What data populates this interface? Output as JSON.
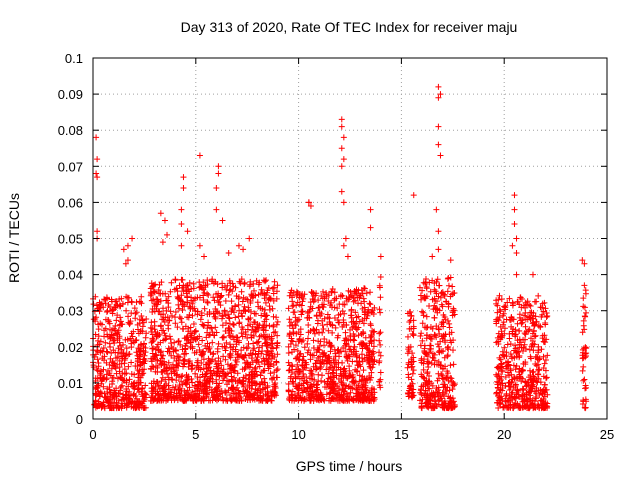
{
  "chart_data": {
    "type": "scatter",
    "title": "Day 313 of 2020, Rate Of TEC Index for receiver maju",
    "xlabel": "GPS time / hours",
    "ylabel": "ROTI / TECUs",
    "xlim": [
      0,
      25
    ],
    "ylim": [
      0,
      0.1
    ],
    "xticks": [
      "0",
      "5",
      "10",
      "15",
      "20",
      "25"
    ],
    "yticks": [
      "0",
      "0.01",
      "0.02",
      "0.03",
      "0.04",
      "0.05",
      "0.06",
      "0.07",
      "0.08",
      "0.09",
      "0.1"
    ],
    "grid": true,
    "marker": "+",
    "color": "#ff0000",
    "data_segments": [
      {
        "x_range": [
          0.0,
          2.6
        ],
        "y_min": 0.003,
        "y_typical": 0.028
      },
      {
        "x_range": [
          2.8,
          9.0
        ],
        "y_min": 0.005,
        "y_typical": 0.032
      },
      {
        "x_range": [
          9.5,
          13.7
        ],
        "y_min": 0.005,
        "y_typical": 0.03
      },
      {
        "x_range": [
          13.9,
          14.0
        ],
        "y_min": 0.008,
        "y_typical": 0.035
      },
      {
        "x_range": [
          15.3,
          15.6
        ],
        "y_min": 0.006,
        "y_typical": 0.025
      },
      {
        "x_range": [
          15.9,
          17.6
        ],
        "y_min": 0.003,
        "y_typical": 0.032
      },
      {
        "x_range": [
          19.6,
          22.1
        ],
        "y_min": 0.003,
        "y_typical": 0.028
      },
      {
        "x_range": [
          23.8,
          24.0
        ],
        "y_min": 0.003,
        "y_typical": 0.03
      }
    ],
    "points": [
      [
        0.15,
        0.078
      ],
      [
        0.2,
        0.072
      ],
      [
        0.15,
        0.068
      ],
      [
        0.2,
        0.067
      ],
      [
        0.2,
        0.052
      ],
      [
        0.2,
        0.05
      ],
      [
        1.5,
        0.047
      ],
      [
        1.7,
        0.048
      ],
      [
        1.9,
        0.05
      ],
      [
        1.7,
        0.044
      ],
      [
        1.6,
        0.043
      ],
      [
        3.3,
        0.057
      ],
      [
        3.5,
        0.055
      ],
      [
        3.6,
        0.051
      ],
      [
        3.4,
        0.049
      ],
      [
        4.4,
        0.067
      ],
      [
        4.4,
        0.064
      ],
      [
        4.3,
        0.058
      ],
      [
        4.3,
        0.054
      ],
      [
        4.6,
        0.052
      ],
      [
        4.3,
        0.048
      ],
      [
        5.2,
        0.073
      ],
      [
        5.2,
        0.048
      ],
      [
        5.4,
        0.045
      ],
      [
        6.1,
        0.07
      ],
      [
        6.1,
        0.068
      ],
      [
        6.0,
        0.064
      ],
      [
        6.0,
        0.058
      ],
      [
        6.3,
        0.055
      ],
      [
        7.1,
        0.048
      ],
      [
        7.3,
        0.047
      ],
      [
        7.6,
        0.05
      ],
      [
        6.6,
        0.046
      ],
      [
        10.5,
        0.06
      ],
      [
        10.6,
        0.059
      ],
      [
        10.5,
        0.06
      ],
      [
        12.1,
        0.083
      ],
      [
        12.1,
        0.081
      ],
      [
        12.2,
        0.078
      ],
      [
        12.1,
        0.075
      ],
      [
        12.2,
        0.072
      ],
      [
        12.1,
        0.07
      ],
      [
        12.1,
        0.063
      ],
      [
        12.2,
        0.06
      ],
      [
        12.3,
        0.05
      ],
      [
        12.2,
        0.048
      ],
      [
        12.4,
        0.045
      ],
      [
        13.5,
        0.058
      ],
      [
        13.5,
        0.053
      ],
      [
        14.0,
        0.045
      ],
      [
        15.6,
        0.062
      ],
      [
        16.8,
        0.092
      ],
      [
        16.9,
        0.09
      ],
      [
        16.8,
        0.089
      ],
      [
        16.8,
        0.081
      ],
      [
        16.8,
        0.076
      ],
      [
        16.9,
        0.073
      ],
      [
        16.7,
        0.058
      ],
      [
        16.8,
        0.052
      ],
      [
        16.8,
        0.047
      ],
      [
        16.5,
        0.045
      ],
      [
        17.4,
        0.044
      ],
      [
        20.5,
        0.062
      ],
      [
        20.5,
        0.058
      ],
      [
        20.5,
        0.054
      ],
      [
        20.6,
        0.05
      ],
      [
        20.4,
        0.048
      ],
      [
        20.6,
        0.046
      ],
      [
        20.6,
        0.04
      ],
      [
        21.4,
        0.04
      ],
      [
        23.8,
        0.044
      ],
      [
        23.9,
        0.043
      ],
      [
        23.9,
        0.037
      ]
    ]
  }
}
